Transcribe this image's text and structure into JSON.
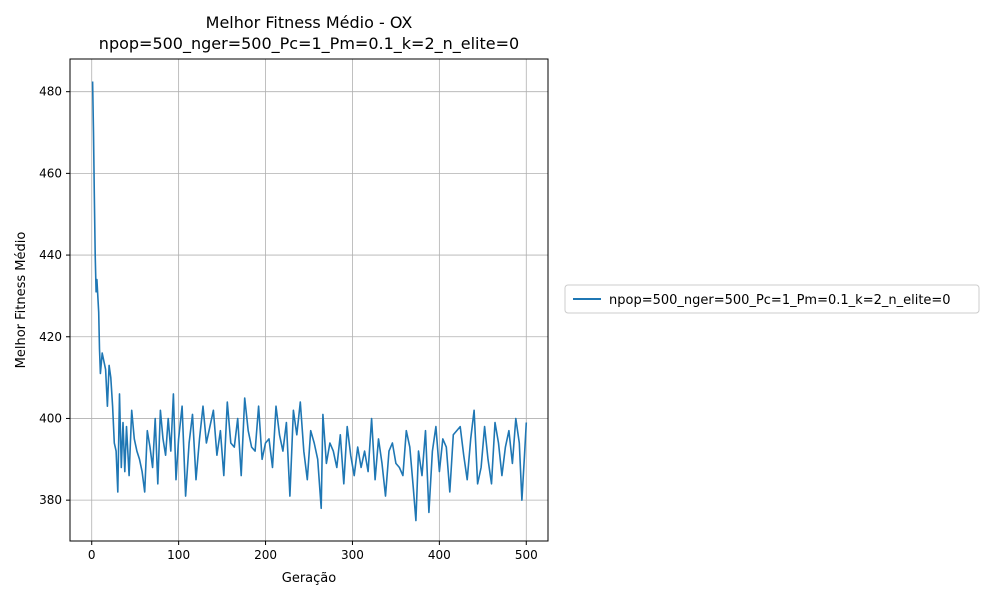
{
  "chart_data": {
    "type": "line",
    "title": "Melhor Fitness Médio - OX",
    "subtitle": "npop=500_nger=500_Pc=1_Pm=0.1_k=2_n_elite=0",
    "xlabel": "Geração",
    "ylabel": "Melhor Fitness Médio",
    "xlim": [
      -25,
      525
    ],
    "ylim": [
      370,
      488
    ],
    "xticks": [
      0,
      100,
      200,
      300,
      400,
      500
    ],
    "yticks": [
      380,
      400,
      420,
      440,
      460,
      480
    ],
    "grid": true,
    "legend_position": "right",
    "series": [
      {
        "name": "npop=500_nger=500_Pc=1_Pm=0.1_k=2_n_elite=0",
        "color": "#1f77b4",
        "x": [
          1,
          2,
          3,
          4,
          5,
          6,
          7,
          8,
          9,
          10,
          12,
          14,
          16,
          18,
          20,
          22,
          24,
          26,
          28,
          30,
          32,
          34,
          36,
          38,
          40,
          43,
          46,
          49,
          52,
          55,
          58,
          61,
          64,
          67,
          70,
          73,
          76,
          79,
          82,
          85,
          88,
          91,
          94,
          97,
          100,
          104,
          108,
          112,
          116,
          120,
          124,
          128,
          132,
          136,
          140,
          144,
          148,
          152,
          156,
          160,
          164,
          168,
          172,
          176,
          180,
          184,
          188,
          192,
          196,
          200,
          204,
          208,
          212,
          216,
          220,
          224,
          228,
          232,
          236,
          240,
          244,
          248,
          252,
          256,
          260,
          264,
          266,
          270,
          274,
          278,
          282,
          286,
          290,
          294,
          298,
          302,
          306,
          310,
          314,
          318,
          322,
          326,
          330,
          334,
          338,
          342,
          346,
          350,
          354,
          358,
          362,
          366,
          370,
          373,
          376,
          380,
          384,
          388,
          392,
          396,
          400,
          404,
          408,
          412,
          416,
          420,
          424,
          428,
          432,
          436,
          440,
          444,
          448,
          452,
          456,
          460,
          464,
          468,
          472,
          476,
          480,
          484,
          488,
          492,
          495,
          498,
          500
        ],
        "y": [
          482.5,
          470,
          455,
          440,
          431,
          434,
          430,
          426,
          417,
          411,
          416,
          414,
          412,
          403,
          413,
          410,
          403,
          394,
          392,
          382,
          406,
          388,
          399,
          387,
          398,
          386,
          402,
          395,
          392,
          390,
          387,
          382,
          397,
          393,
          388,
          400,
          384,
          402,
          395,
          391,
          400,
          392,
          406,
          385,
          395,
          403,
          381,
          394,
          401,
          385,
          395,
          403,
          394,
          398,
          402,
          391,
          397,
          386,
          404,
          394,
          393,
          400,
          386,
          405,
          397,
          393,
          392,
          403,
          390,
          394,
          395,
          388,
          403,
          396,
          392,
          399,
          381,
          402,
          396,
          404,
          392,
          385,
          397,
          394,
          390,
          378,
          401,
          389,
          394,
          392,
          388,
          396,
          384,
          398,
          391,
          386,
          393,
          388,
          392,
          387,
          400,
          385,
          395,
          389,
          381,
          392,
          394,
          389,
          388,
          386,
          397,
          393,
          383,
          375,
          392,
          386,
          397,
          377,
          392,
          398,
          387,
          395,
          393,
          382,
          396,
          397,
          398,
          391,
          385,
          395,
          402,
          384,
          388,
          398,
          390,
          384,
          399,
          394,
          386,
          393,
          397,
          389,
          400,
          394,
          380,
          391,
          399
        ]
      }
    ]
  }
}
